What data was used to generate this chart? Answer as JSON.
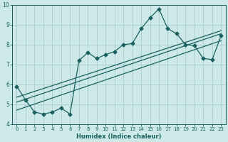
{
  "xlabel": "Humidex (Indice chaleur)",
  "xlim": [
    -0.5,
    23.5
  ],
  "ylim": [
    4,
    10
  ],
  "xticks": [
    0,
    1,
    2,
    3,
    4,
    5,
    6,
    7,
    8,
    9,
    10,
    11,
    12,
    13,
    14,
    15,
    16,
    17,
    18,
    19,
    20,
    21,
    22,
    23
  ],
  "yticks": [
    4,
    5,
    6,
    7,
    8,
    9,
    10
  ],
  "bg_color": "#cce8e8",
  "grid_color": "#aacccc",
  "line_color": "#1a6060",
  "series1_x": [
    0,
    1,
    2,
    3,
    4,
    5,
    6,
    7,
    8,
    9,
    10,
    11,
    12,
    13,
    14,
    15,
    16,
    17,
    18,
    19,
    20,
    21,
    22,
    23
  ],
  "series1_y": [
    5.9,
    5.2,
    4.6,
    4.5,
    4.6,
    4.8,
    4.5,
    7.2,
    7.6,
    7.3,
    7.5,
    7.65,
    8.0,
    8.05,
    8.8,
    9.35,
    9.8,
    8.8,
    8.55,
    8.0,
    7.95,
    7.3,
    7.25,
    8.45
  ],
  "series2_x": [
    0,
    23
  ],
  "series2_y": [
    5.1,
    8.55
  ],
  "series3_x": [
    0,
    23
  ],
  "series3_y": [
    5.35,
    8.7
  ],
  "series4_x": [
    0,
    23
  ],
  "series4_y": [
    4.7,
    8.2
  ],
  "marker": "D",
  "markersize": 2.5,
  "linewidth": 0.9,
  "xlabel_fontsize": 6.0,
  "tick_fontsize_x": 5.0,
  "tick_fontsize_y": 5.5
}
